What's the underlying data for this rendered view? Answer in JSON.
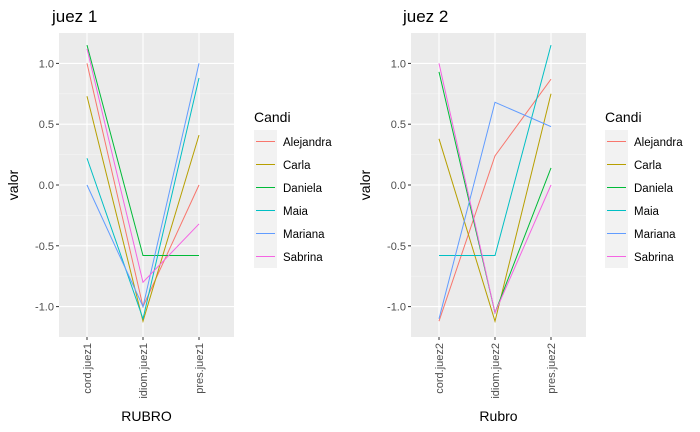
{
  "chart_data": [
    {
      "type": "line",
      "title": "juez 1",
      "xlabel": "RUBRO",
      "ylabel": "valor",
      "categories": [
        "cord.juez1",
        "idiom.juez1",
        "pres.juez1"
      ],
      "ylim": [
        -1.25,
        1.25
      ],
      "yticks": [
        1.0,
        0.5,
        0.0,
        -0.5,
        -1.0
      ],
      "ytick_labels": [
        "1.0",
        "0.5",
        "0.0",
        "-0.5",
        "-1.0"
      ],
      "grid": true,
      "legend": {
        "title": "Candi",
        "position": "right"
      },
      "series": [
        {
          "name": "Alejandra",
          "values": [
            1.0,
            -1.0,
            0.0
          ]
        },
        {
          "name": "Carla",
          "values": [
            0.73,
            -1.12,
            0.41
          ]
        },
        {
          "name": "Daniela",
          "values": [
            1.15,
            -0.58,
            -0.58
          ]
        },
        {
          "name": "Maia",
          "values": [
            0.22,
            -1.1,
            0.88
          ]
        },
        {
          "name": "Mariana",
          "values": [
            0.0,
            -1.0,
            1.0
          ]
        },
        {
          "name": "Sabrina",
          "values": [
            1.12,
            -0.8,
            -0.32
          ]
        }
      ]
    },
    {
      "type": "line",
      "title": "juez 2",
      "xlabel": "Rubro",
      "ylabel": "valor",
      "categories": [
        "cord.juez2",
        "idiom.juez2",
        "pres.juez2"
      ],
      "ylim": [
        -1.25,
        1.25
      ],
      "yticks": [
        1.0,
        0.5,
        0.0,
        -0.5,
        -1.0
      ],
      "ytick_labels": [
        "1.0",
        "0.5",
        "0.0",
        "-0.5",
        "-1.0"
      ],
      "grid": true,
      "legend": {
        "title": "Candi",
        "position": "right"
      },
      "series": [
        {
          "name": "Alejandra",
          "values": [
            -1.12,
            0.24,
            0.87
          ]
        },
        {
          "name": "Carla",
          "values": [
            0.38,
            -1.12,
            0.75
          ]
        },
        {
          "name": "Daniela",
          "values": [
            0.93,
            -1.05,
            0.14
          ]
        },
        {
          "name": "Maia",
          "values": [
            -0.58,
            -0.58,
            1.15
          ]
        },
        {
          "name": "Mariana",
          "values": [
            -1.1,
            0.68,
            0.48
          ]
        },
        {
          "name": "Sabrina",
          "values": [
            1.0,
            -1.05,
            0.0
          ]
        }
      ]
    }
  ],
  "colors": {
    "Alejandra": "#F8766D",
    "Carla": "#B79F00",
    "Daniela": "#00BA38",
    "Maia": "#00BFC4",
    "Mariana": "#619CFF",
    "Sabrina": "#F564E3"
  }
}
